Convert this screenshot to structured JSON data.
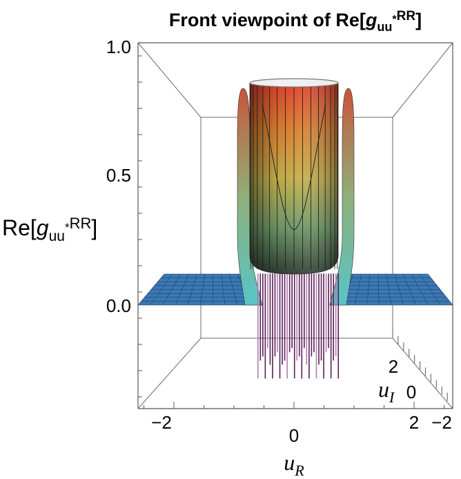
{
  "chart_data": {
    "type": "surface3d",
    "title": "Front viewpoint of Re[g_uu*^RR]",
    "title_parts": {
      "prefix": "Front viewpoint of  Re[",
      "g": "g",
      "sub": "uu",
      "star": "*",
      "sup": "RR",
      "suffix": "]"
    },
    "zlabel_parts": {
      "prefix": "Re[",
      "g": "g",
      "sub": "uu",
      "star": "*",
      "sup": "RR",
      "suffix": "]"
    },
    "xlabel_parts": {
      "var": "u",
      "sub": "R"
    },
    "ylabel_parts": {
      "var": "u",
      "sub": "I"
    },
    "z_ticks": [
      "1.0",
      "0.5",
      "0.0"
    ],
    "x_ticks": [
      "−2",
      "0",
      "2"
    ],
    "y_ticks": [
      "2",
      "0",
      "−2"
    ],
    "zlim": [
      -0.35,
      1.0
    ],
    "xlim": [
      -2.5,
      2.5
    ],
    "ylim": [
      -3,
      3
    ],
    "surface": {
      "baseline_value": 0.0,
      "rim_value": 0.85,
      "inner_min_value": 0.3,
      "lower_edge_value": 0.12,
      "spike_min_value": -0.28,
      "wall_halfwidth_uR": 0.65,
      "cylinder_radius_uR": 0.65
    },
    "colors": {
      "floor_blue": "#3b78b4",
      "floor_mesh": "#1a3553",
      "wall_top": "#d63a2a",
      "wall_mid": "#c9a84a",
      "wall_low": "#5ab8b8",
      "spike": "#5a1f55",
      "axis": "#555555"
    }
  }
}
